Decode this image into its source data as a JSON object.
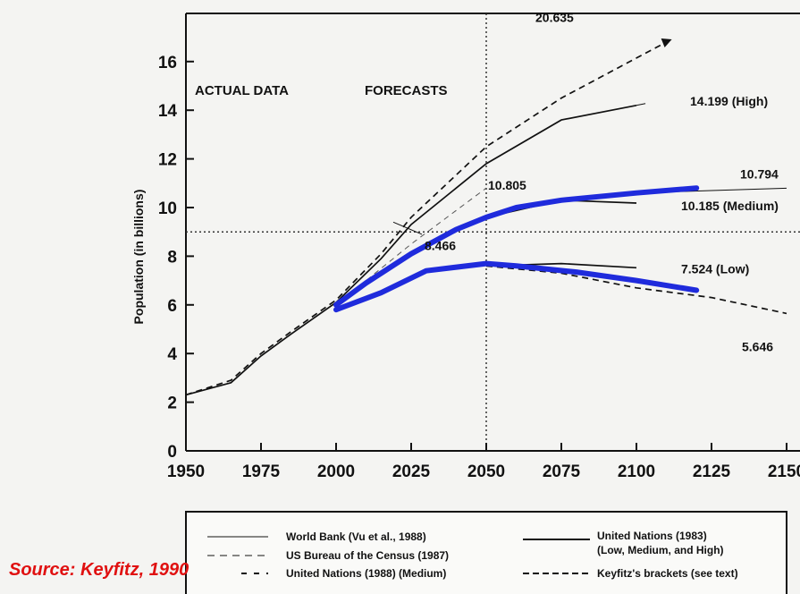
{
  "source_text": "Source: Keyfitz, 1990",
  "colors": {
    "highlight": "#1f2bdc",
    "ink": "#111111",
    "source": "#e01010"
  },
  "section_labels": {
    "actual": "ACTUAL DATA",
    "forecasts": "FORECASTS"
  },
  "legend": {
    "items": [
      {
        "label": "World Bank (Vu et al., 1988)",
        "style": "thin-solid"
      },
      {
        "label": "US Bureau of the Census (1987)",
        "style": "thin-dashed"
      },
      {
        "label": "United Nations (1988) (Medium)",
        "style": "dash-dot"
      },
      {
        "label": "United Nations (1983)",
        "label2": "(Low, Medium, and High)",
        "style": "solid"
      },
      {
        "label": "Keyfitz's brackets (see text)",
        "style": "dashed"
      }
    ]
  },
  "chart_data": {
    "type": "line",
    "title": "",
    "xlabel": "",
    "ylabel": "Population (in billions)",
    "xlim": [
      1950,
      2150
    ],
    "ylim": [
      0,
      17.5
    ],
    "x_ticks": [
      "1950",
      "1975",
      "2000",
      "2025",
      "2050",
      "2075",
      "2100",
      "2125",
      "2150"
    ],
    "x_tick_values": [
      1950,
      1975,
      2000,
      2025,
      2050,
      2075,
      2100,
      2125,
      2150
    ],
    "y_ticks": [
      "0",
      "2",
      "4",
      "6",
      "8",
      "10",
      "12",
      "14",
      "16"
    ],
    "y_tick_values": [
      0,
      2,
      4,
      6,
      8,
      10,
      12,
      14,
      16
    ],
    "reference_lines": {
      "vertical_x": 2050,
      "horizontal_y": 9
    },
    "grid": false,
    "legend_position": "bottom",
    "series": [
      {
        "style": "solid",
        "x": [
          1950,
          1965,
          1975,
          1985,
          2000,
          2015,
          2025,
          2050,
          2075,
          2100
        ],
        "y": [
          2.3,
          2.8,
          3.9,
          4.8,
          6.1,
          7.9,
          9.3,
          11.8,
          13.6,
          14.2
        ]
      },
      {
        "style": "dashed",
        "x": [
          1950,
          1965,
          1975,
          1985,
          2000,
          2015,
          2025,
          2050,
          2075,
          2110
        ],
        "y": [
          2.3,
          2.9,
          4.0,
          4.9,
          6.2,
          8.1,
          9.6,
          12.5,
          14.5,
          16.8
        ]
      },
      {
        "style": "solid",
        "x": [
          2050,
          2075,
          2100
        ],
        "y": [
          9.6,
          10.3,
          10.185
        ]
      },
      {
        "style": "solid",
        "x": [
          2050,
          2075,
          2100
        ],
        "y": [
          7.6,
          7.7,
          7.524
        ]
      },
      {
        "style": "thin-dashed",
        "x": [
          2000,
          2025,
          2050
        ],
        "y": [
          6.0,
          8.5,
          10.8
        ]
      },
      {
        "style": "thin-solid",
        "x": [
          2075,
          2100,
          2125,
          2150
        ],
        "y": [
          10.35,
          10.6,
          10.7,
          10.794
        ]
      },
      {
        "style": "dashed",
        "x": [
          2050,
          2075,
          2100,
          2125,
          2150
        ],
        "y": [
          7.6,
          7.3,
          6.7,
          6.3,
          5.646
        ]
      },
      {
        "style": "thick-blue",
        "x": [
          2000,
          2010,
          2025,
          2040,
          2050,
          2060,
          2075,
          2100,
          2120
        ],
        "y": [
          6.0,
          6.9,
          8.1,
          9.1,
          9.6,
          10.0,
          10.3,
          10.6,
          10.8
        ]
      },
      {
        "style": "thick-blue",
        "x": [
          2000,
          2015,
          2030,
          2050,
          2060,
          2080,
          2100,
          2120
        ],
        "y": [
          5.8,
          6.5,
          7.4,
          7.7,
          7.6,
          7.35,
          7.0,
          6.6
        ]
      }
    ],
    "annotations": [
      {
        "text": "20.635",
        "x": 2050,
        "y": 16.6
      },
      {
        "text": "14.199 (High)",
        "x": 2100,
        "y": 14.2
      },
      {
        "text": "10.805",
        "x": 2050,
        "y": 10.8
      },
      {
        "text": "10.794",
        "x": 2150,
        "y": 10.794
      },
      {
        "text": "10.185 (Medium)",
        "x": 2100,
        "y": 10.185
      },
      {
        "text": "8.466",
        "x": 2025,
        "y": 8.466
      },
      {
        "text": "7.524 (Low)",
        "x": 2100,
        "y": 7.524
      },
      {
        "text": "5.646",
        "x": 2150,
        "y": 5.646
      }
    ]
  }
}
